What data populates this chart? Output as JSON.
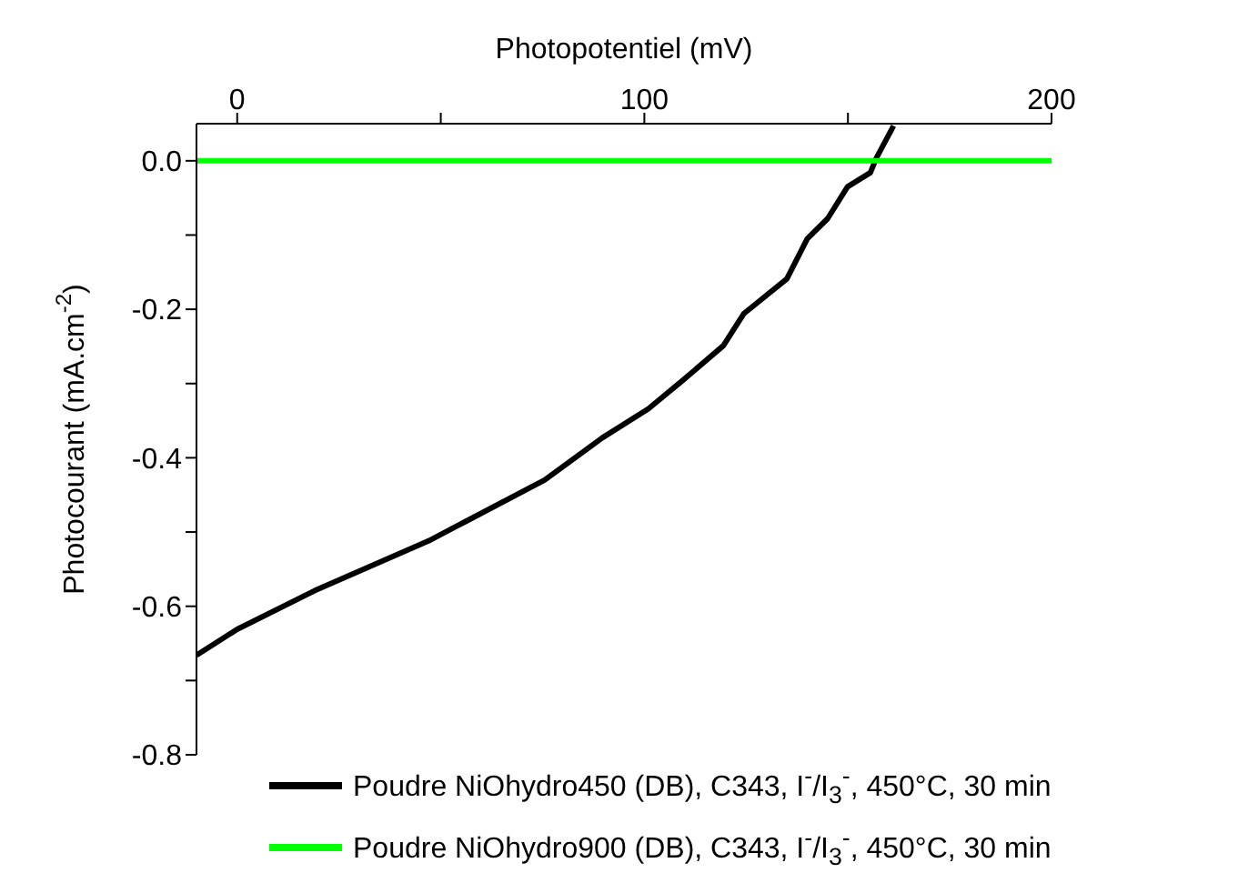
{
  "chart_data": {
    "type": "line",
    "xlabel": "Photopotentiel (mV)",
    "ylabel": "Photocourant (mA.cm$^{-2}$)",
    "xlim": [
      -10,
      200
    ],
    "ylim": [
      -0.8,
      0.05
    ],
    "xticks": [
      0,
      {
        "value": 50,
        "label": null
      },
      100,
      {
        "value": 150,
        "label": null
      },
      200
    ],
    "yticks": [
      {
        "value": 0,
        "label": "0.0"
      },
      {
        "value": -0.1,
        "label": null
      },
      -0.2,
      {
        "value": -0.3,
        "label": null
      },
      -0.4,
      {
        "value": -0.5,
        "label": null
      },
      -0.6,
      {
        "value": -0.7,
        "label": null
      },
      -0.8
    ],
    "legend": "bottom",
    "series": [
      {
        "name": "Poudre NiOhydro450 (DB), C343, I$^{-}$/I$_{3}$$^{-}$, 450°C, 30 min",
        "color": "#000000",
        "x": [
          -10,
          0,
          19,
          47,
          75.5,
          89.7,
          101,
          109.6,
          119.4,
          124.4,
          135,
          140,
          145,
          149.9,
          155.5,
          157,
          161.2
        ],
        "values": [
          -0.666,
          -0.631,
          -0.579,
          -0.512,
          -0.43,
          -0.373,
          -0.334,
          -0.295,
          -0.249,
          -0.206,
          -0.159,
          -0.105,
          -0.078,
          -0.035,
          -0.016,
          0.004,
          0.047
        ]
      },
      {
        "name": "Poudre NiOhydro900 (DB), C343, I$^{-}$/I$_{3}$$^{-}$, 450°C, 30 min",
        "color": "#00ff00",
        "x": [
          -10,
          200
        ],
        "values": [
          0,
          0
        ]
      }
    ]
  }
}
